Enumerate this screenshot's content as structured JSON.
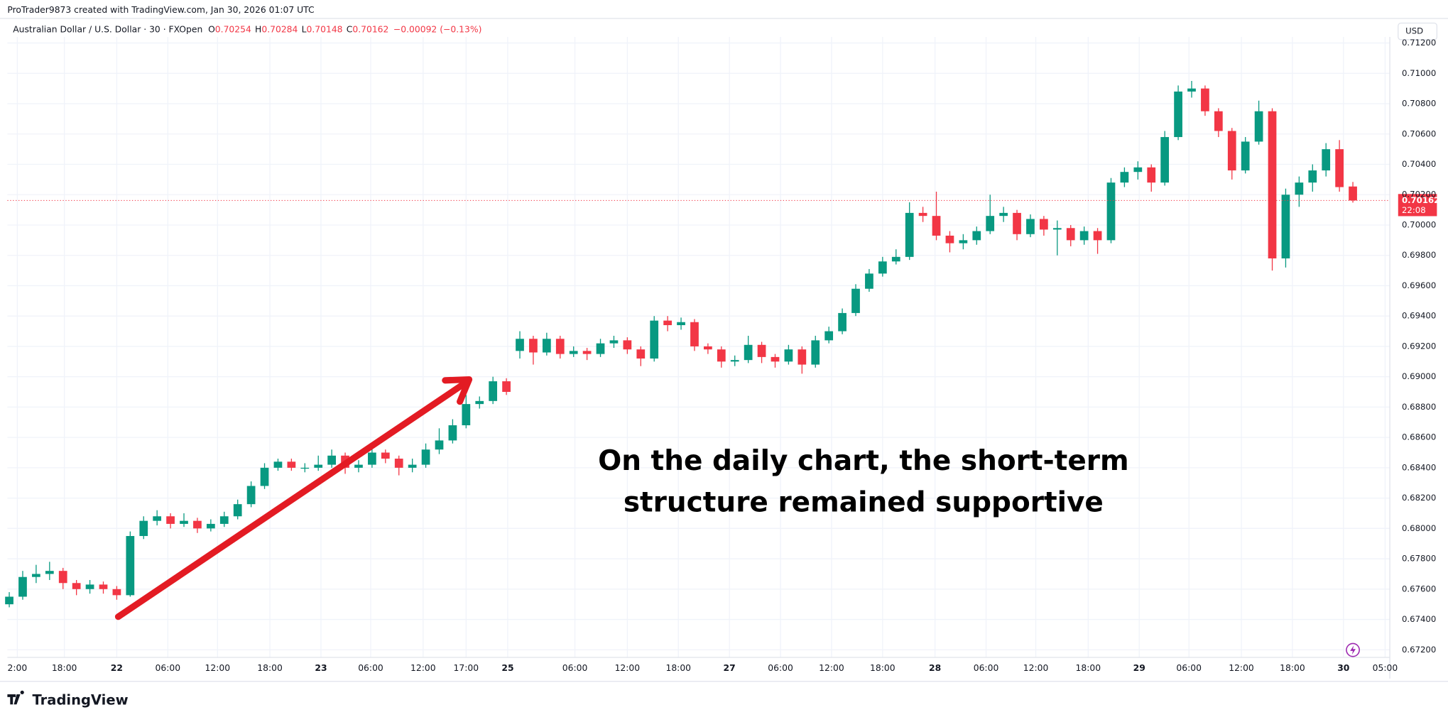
{
  "header": {
    "credit": "ProTrader9873 created with TradingView.com, Jan 30, 2026 01:07 UTC",
    "symbol": "Australian Dollar / U.S. Dollar · 30 · FXOpen",
    "ohlc_labels": [
      "O",
      "H",
      "L",
      "C"
    ],
    "change": "−0.00092 (−0.13%)"
  },
  "footer": {
    "brand": "TradingView"
  },
  "chart_data": {
    "type": "candlestick",
    "currency": "USD",
    "countdown": "22:08",
    "annotation": [
      "On the daily chart, the short-term",
      "structure remained supportive"
    ],
    "up_color": "#089981",
    "down_color": "#f23645",
    "grid": true,
    "xlim": [
      -0.14,
      102.75
    ],
    "ylim": [
      0.6715,
      0.7124
    ],
    "xticks": [
      {
        "value": 0.6,
        "label": "2:00"
      },
      {
        "value": 4.1,
        "label": "18:00"
      },
      {
        "value": 8.0,
        "label": "22"
      },
      {
        "value": 11.8,
        "label": "06:00"
      },
      {
        "value": 15.5,
        "label": "12:00"
      },
      {
        "value": 19.4,
        "label": "18:00"
      },
      {
        "value": 23.2,
        "label": "23"
      },
      {
        "value": 26.9,
        "label": "06:00"
      },
      {
        "value": 30.8,
        "label": "12:00"
      },
      {
        "value": 34.0,
        "label": "17:00"
      },
      {
        "value": 37.1,
        "label": "25"
      },
      {
        "value": 42.1,
        "label": "06:00"
      },
      {
        "value": 46.0,
        "label": "12:00"
      },
      {
        "value": 49.8,
        "label": "18:00"
      },
      {
        "value": 53.6,
        "label": "27"
      },
      {
        "value": 57.4,
        "label": "06:00"
      },
      {
        "value": 61.2,
        "label": "12:00"
      },
      {
        "value": 65.0,
        "label": "18:00"
      },
      {
        "value": 68.9,
        "label": "28"
      },
      {
        "value": 72.7,
        "label": "06:00"
      },
      {
        "value": 76.4,
        "label": "12:00"
      },
      {
        "value": 80.3,
        "label": "18:00"
      },
      {
        "value": 84.1,
        "label": "29"
      },
      {
        "value": 87.8,
        "label": "06:00"
      },
      {
        "value": 91.7,
        "label": "12:00"
      },
      {
        "value": 95.5,
        "label": "18:00"
      },
      {
        "value": 99.3,
        "label": "30"
      },
      {
        "value": 102.4,
        "label": "05:00"
      }
    ],
    "yticks": [
      {
        "value": 0.672,
        "label": "0.67200"
      },
      {
        "value": 0.674,
        "label": "0.67400"
      },
      {
        "value": 0.676,
        "label": "0.67600"
      },
      {
        "value": 0.678,
        "label": "0.67800"
      },
      {
        "value": 0.68,
        "label": "0.68000"
      },
      {
        "value": 0.682,
        "label": "0.68200"
      },
      {
        "value": 0.684,
        "label": "0.68400"
      },
      {
        "value": 0.686,
        "label": "0.68600"
      },
      {
        "value": 0.688,
        "label": "0.68800"
      },
      {
        "value": 0.69,
        "label": "0.69000"
      },
      {
        "value": 0.692,
        "label": "0.69200"
      },
      {
        "value": 0.694,
        "label": "0.69400"
      },
      {
        "value": 0.696,
        "label": "0.69600"
      },
      {
        "value": 0.698,
        "label": "0.69800"
      },
      {
        "value": 0.7,
        "label": "0.70000"
      },
      {
        "value": 0.702,
        "label": "0.70200"
      },
      {
        "value": 0.704,
        "label": "0.70400"
      },
      {
        "value": 0.706,
        "label": "0.70600"
      },
      {
        "value": 0.708,
        "label": "0.70800"
      },
      {
        "value": 0.71,
        "label": "0.71000"
      },
      {
        "value": 0.712,
        "label": "0.71200"
      }
    ],
    "ohlc": [
      [
        0.675,
        0.6758,
        0.6748,
        0.6755
      ],
      [
        0.6755,
        0.6772,
        0.6753,
        0.6768
      ],
      [
        0.6768,
        0.6776,
        0.6764,
        0.677
      ],
      [
        0.677,
        0.6778,
        0.6766,
        0.6772
      ],
      [
        0.6772,
        0.6774,
        0.676,
        0.6764
      ],
      [
        0.6764,
        0.6766,
        0.6756,
        0.676
      ],
      [
        0.676,
        0.6766,
        0.6757,
        0.6763
      ],
      [
        0.6763,
        0.6765,
        0.6757,
        0.676
      ],
      [
        0.676,
        0.6762,
        0.6753,
        0.6756
      ],
      [
        0.6756,
        0.6798,
        0.6755,
        0.6795
      ],
      [
        0.6795,
        0.6808,
        0.6793,
        0.6805
      ],
      [
        0.6805,
        0.6812,
        0.6802,
        0.6808
      ],
      [
        0.6808,
        0.681,
        0.68,
        0.6803
      ],
      [
        0.6803,
        0.681,
        0.6801,
        0.6805
      ],
      [
        0.6805,
        0.6807,
        0.6797,
        0.68
      ],
      [
        0.68,
        0.6806,
        0.6798,
        0.6803
      ],
      [
        0.6803,
        0.6811,
        0.6801,
        0.6808
      ],
      [
        0.6808,
        0.6819,
        0.6806,
        0.6816
      ],
      [
        0.6816,
        0.6831,
        0.6814,
        0.6828
      ],
      [
        0.6828,
        0.6843,
        0.6826,
        0.684
      ],
      [
        0.684,
        0.6846,
        0.6838,
        0.6844
      ],
      [
        0.6844,
        0.6846,
        0.6838,
        0.684
      ],
      [
        0.684,
        0.6843,
        0.6837,
        0.684
      ],
      [
        0.684,
        0.6848,
        0.6838,
        0.6842
      ],
      [
        0.6842,
        0.6852,
        0.684,
        0.6848
      ],
      [
        0.6848,
        0.685,
        0.6836,
        0.684
      ],
      [
        0.684,
        0.6845,
        0.6837,
        0.6842
      ],
      [
        0.6842,
        0.6854,
        0.684,
        0.685
      ],
      [
        0.685,
        0.6852,
        0.6843,
        0.6846
      ],
      [
        0.6846,
        0.6848,
        0.6835,
        0.684
      ],
      [
        0.684,
        0.6846,
        0.6837,
        0.6842
      ],
      [
        0.6842,
        0.6856,
        0.684,
        0.6852
      ],
      [
        0.6852,
        0.6866,
        0.6849,
        0.6858
      ],
      [
        0.6858,
        0.6872,
        0.6856,
        0.6868
      ],
      [
        0.6868,
        0.6888,
        0.6866,
        0.6882
      ],
      [
        0.6882,
        0.6887,
        0.6879,
        0.6884
      ],
      [
        0.6884,
        0.69,
        0.6882,
        0.6897
      ],
      [
        0.6897,
        0.6899,
        0.6888,
        0.689
      ],
      [
        0.6917,
        0.693,
        0.6912,
        0.6925
      ],
      [
        0.6925,
        0.6927,
        0.6908,
        0.6916
      ],
      [
        0.6916,
        0.6929,
        0.6914,
        0.6925
      ],
      [
        0.6925,
        0.6927,
        0.6912,
        0.6915
      ],
      [
        0.6915,
        0.692,
        0.6913,
        0.6917
      ],
      [
        0.6917,
        0.6919,
        0.6911,
        0.6915
      ],
      [
        0.6915,
        0.6925,
        0.6913,
        0.6922
      ],
      [
        0.6922,
        0.6927,
        0.6919,
        0.6924
      ],
      [
        0.6924,
        0.6926,
        0.6915,
        0.6918
      ],
      [
        0.6918,
        0.692,
        0.6907,
        0.6912
      ],
      [
        0.6912,
        0.694,
        0.691,
        0.6937
      ],
      [
        0.6937,
        0.694,
        0.693,
        0.6934
      ],
      [
        0.6934,
        0.6939,
        0.6931,
        0.6936
      ],
      [
        0.6936,
        0.6938,
        0.6917,
        0.692
      ],
      [
        0.692,
        0.6922,
        0.6915,
        0.6918
      ],
      [
        0.6918,
        0.692,
        0.6906,
        0.691
      ],
      [
        0.691,
        0.6914,
        0.6907,
        0.6911
      ],
      [
        0.6911,
        0.6927,
        0.6909,
        0.6921
      ],
      [
        0.6921,
        0.6923,
        0.6909,
        0.6913
      ],
      [
        0.6913,
        0.6915,
        0.6906,
        0.691
      ],
      [
        0.691,
        0.6921,
        0.6908,
        0.6918
      ],
      [
        0.6918,
        0.692,
        0.6902,
        0.6908
      ],
      [
        0.6908,
        0.6927,
        0.6906,
        0.6924
      ],
      [
        0.6924,
        0.6933,
        0.6922,
        0.693
      ],
      [
        0.693,
        0.6945,
        0.6928,
        0.6942
      ],
      [
        0.6942,
        0.6961,
        0.694,
        0.6958
      ],
      [
        0.6958,
        0.6971,
        0.6956,
        0.6968
      ],
      [
        0.6968,
        0.6979,
        0.6966,
        0.6976
      ],
      [
        0.6976,
        0.6984,
        0.6974,
        0.6979
      ],
      [
        0.6979,
        0.7015,
        0.6977,
        0.7008
      ],
      [
        0.7008,
        0.7012,
        0.7002,
        0.7006
      ],
      [
        0.7006,
        0.7022,
        0.699,
        0.6993
      ],
      [
        0.6993,
        0.6996,
        0.6982,
        0.6988
      ],
      [
        0.6988,
        0.6994,
        0.6984,
        0.699
      ],
      [
        0.699,
        0.6999,
        0.6987,
        0.6996
      ],
      [
        0.6996,
        0.702,
        0.6994,
        0.7006
      ],
      [
        0.7006,
        0.7012,
        0.7002,
        0.7008
      ],
      [
        0.7008,
        0.701,
        0.699,
        0.6994
      ],
      [
        0.6994,
        0.7007,
        0.6992,
        0.7004
      ],
      [
        0.7004,
        0.7006,
        0.6993,
        0.6997
      ],
      [
        0.6997,
        0.7003,
        0.698,
        0.6998
      ],
      [
        0.6998,
        0.7,
        0.6986,
        0.699
      ],
      [
        0.699,
        0.6999,
        0.6987,
        0.6996
      ],
      [
        0.6996,
        0.6998,
        0.6981,
        0.699
      ],
      [
        0.699,
        0.7031,
        0.6988,
        0.7028
      ],
      [
        0.7028,
        0.7038,
        0.7025,
        0.7035
      ],
      [
        0.7035,
        0.7042,
        0.703,
        0.7038
      ],
      [
        0.7038,
        0.704,
        0.7022,
        0.7028
      ],
      [
        0.7028,
        0.7062,
        0.7026,
        0.7058
      ],
      [
        0.7058,
        0.7092,
        0.7056,
        0.7088
      ],
      [
        0.7088,
        0.7095,
        0.7084,
        0.709
      ],
      [
        0.709,
        0.7092,
        0.7072,
        0.7075
      ],
      [
        0.7075,
        0.7077,
        0.7058,
        0.7062
      ],
      [
        0.7062,
        0.7064,
        0.703,
        0.7036
      ],
      [
        0.7036,
        0.7058,
        0.7034,
        0.7055
      ],
      [
        0.7055,
        0.7082,
        0.7053,
        0.7075
      ],
      [
        0.7075,
        0.7077,
        0.697,
        0.6978
      ],
      [
        0.6978,
        0.7024,
        0.6972,
        0.702
      ],
      [
        0.702,
        0.7032,
        0.7012,
        0.7028
      ],
      [
        0.7028,
        0.704,
        0.7022,
        0.7036
      ],
      [
        0.7036,
        0.7054,
        0.7032,
        0.705
      ],
      [
        0.705,
        0.7056,
        0.7022,
        0.7025
      ],
      [
        0.70254,
        0.70284,
        0.70148,
        0.70162
      ]
    ]
  }
}
